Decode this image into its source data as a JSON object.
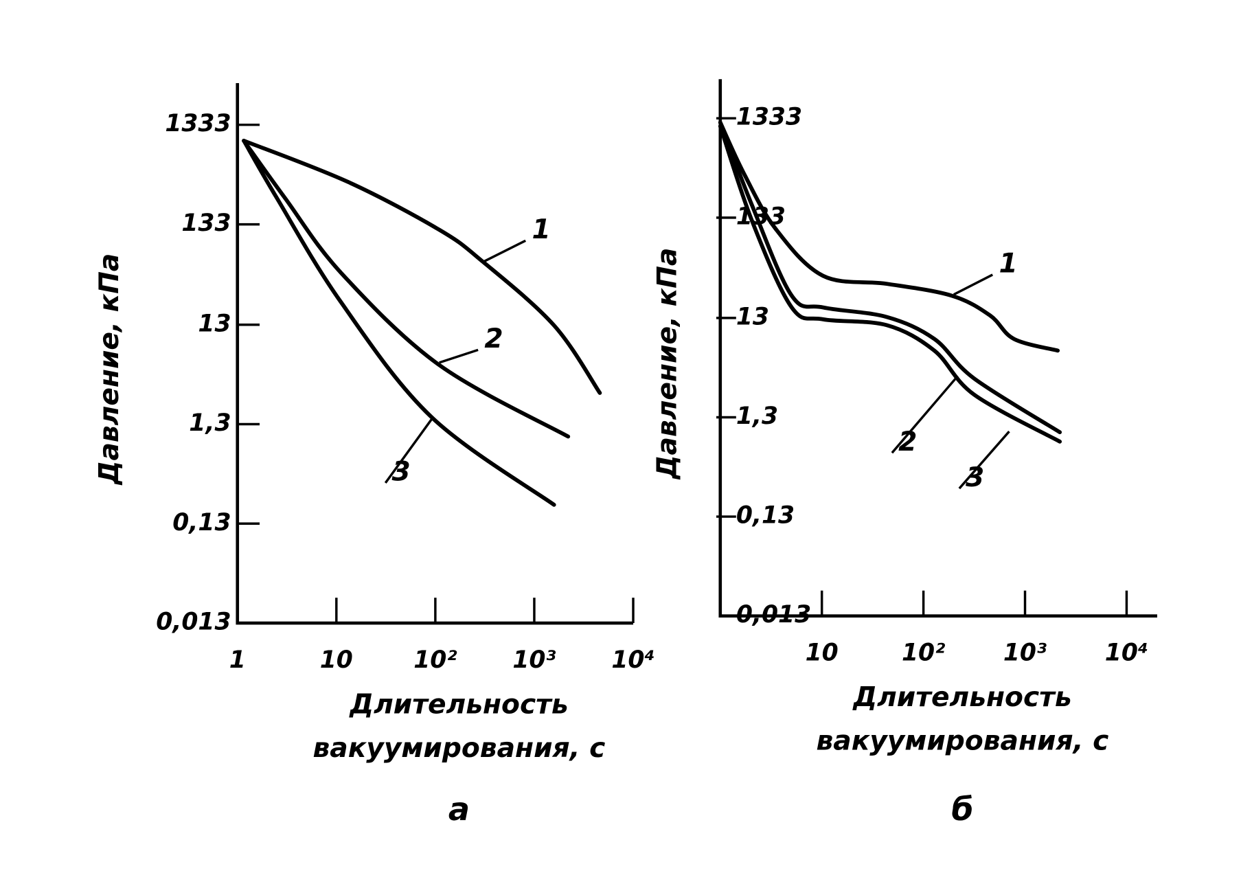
{
  "chart_data": [
    {
      "type": "line",
      "panel": "а",
      "ylabel": "Давление, кПа",
      "xlabel": [
        "Длительность",
        "вакуумирования, с"
      ],
      "xscale": "log",
      "yscale": "log",
      "xlim": [
        1,
        10000
      ],
      "ylim": [
        0.013,
        3500
      ],
      "xticks": [
        1,
        10,
        {
          "value": 100,
          "label": "10²"
        },
        {
          "value": 1000,
          "label": "10³"
        },
        {
          "value": 10000,
          "label": "10⁴"
        }
      ],
      "yticks": [
        1333,
        133,
        13,
        {
          "value": 1.3,
          "label": "1,3"
        },
        {
          "value": 0.13,
          "label": "0,13"
        },
        {
          "value": 0.013,
          "label": "0,013"
        }
      ],
      "series": [
        {
          "name": "1",
          "color": "#000000",
          "x": [
            1.16,
            13.2,
            110,
            302,
            1585,
            4600
          ],
          "values": [
            922,
            354,
            117,
            56,
            12.8,
            2.68
          ]
        },
        {
          "name": "2",
          "color": "#000000",
          "x": [
            1.16,
            3.02,
            11.3,
            110,
            2200
          ],
          "values": [
            922,
            245,
            42.6,
            5.1,
            0.976
          ]
        },
        {
          "name": "3",
          "color": "#000000",
          "x": [
            1.16,
            2.5,
            11,
            91,
            1585
          ],
          "values": [
            922,
            245,
            22.3,
            1.54,
            0.201
          ]
        }
      ]
    },
    {
      "type": "line",
      "panel": "б",
      "ylabel": "Давление, кПа",
      "xlabel": [
        "Длительность",
        "вакуумирования, с"
      ],
      "xscale": "log",
      "yscale": "log",
      "xlim": [
        1,
        20000
      ],
      "ylim": [
        0.013,
        3300
      ],
      "xticks": [
        10,
        {
          "value": 100,
          "label": "10²"
        },
        {
          "value": 1000,
          "label": "10³"
        },
        {
          "value": 10000,
          "label": "10⁴"
        }
      ],
      "yticks": [
        1333,
        133,
        13,
        {
          "value": 1.3,
          "label": "1,3"
        },
        {
          "value": 0.13,
          "label": "0,13"
        },
        {
          "value": 0.013,
          "label": "0,013"
        }
      ],
      "series": [
        {
          "name": "1",
          "color": "#000000",
          "x": [
            1,
            1.71,
            3.5,
            10.3,
            43.6,
            190,
            452,
            778,
            2100
          ],
          "values": [
            1210,
            370,
            103,
            34.5,
            28.7,
            21.8,
            13.8,
            8.0,
            6.1
          ]
        },
        {
          "name": "2",
          "color": "#000000",
          "x": [
            1,
            2.05,
            5.05,
            10.3,
            43.6,
            128,
            315,
            2200
          ],
          "values": [
            1210,
            178,
            21.8,
            16.6,
            13.3,
            8.0,
            3.2,
            0.92
          ]
        },
        {
          "name": "3",
          "color": "#000000",
          "x": [
            1,
            2.05,
            5.05,
            10.3,
            43.6,
            128,
            315,
            2200
          ],
          "values": [
            1110,
            124,
            16.6,
            12.6,
            11.0,
            6.1,
            2.2,
            0.74
          ]
        }
      ]
    }
  ]
}
